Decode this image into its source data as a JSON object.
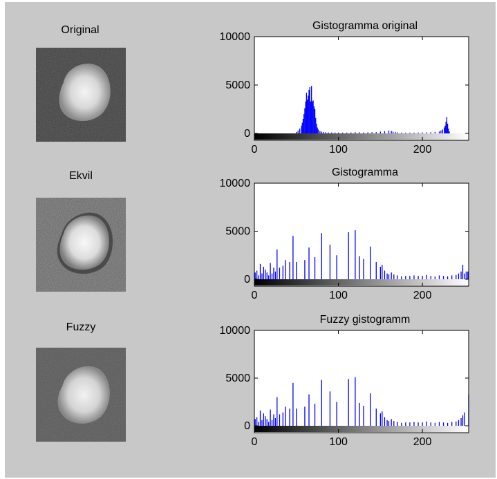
{
  "colors": {
    "figure_background": "#c8c8c8",
    "axes_background": "#ffffff",
    "bar_color": "#0000ff",
    "axes_color": "#000000"
  },
  "images": [
    {
      "label": "Original",
      "variant": "original"
    },
    {
      "label": "Ekvil",
      "variant": "equalized"
    },
    {
      "label": "Fuzzy",
      "variant": "fuzzy"
    }
  ],
  "chart_data": [
    {
      "type": "bar",
      "title": "Gistogramma original",
      "xlim": [
        0,
        255
      ],
      "ylim": [
        0,
        10000
      ],
      "xticks": [
        0,
        100,
        200
      ],
      "yticks": [
        0,
        5000,
        10000
      ],
      "colorbar": "grayscale",
      "x": [
        50,
        52,
        54,
        56,
        57,
        58,
        59,
        60,
        61,
        62,
        63,
        64,
        65,
        66,
        67,
        68,
        69,
        70,
        71,
        72,
        73,
        74,
        75,
        76,
        78,
        80,
        82,
        85,
        88,
        92,
        96,
        100,
        105,
        110,
        115,
        120,
        125,
        130,
        135,
        140,
        145,
        150,
        155,
        160,
        163,
        165,
        168,
        170,
        175,
        180,
        185,
        190,
        195,
        200,
        205,
        210,
        215,
        220,
        222,
        224,
        226,
        227,
        228,
        229,
        230,
        231,
        232
      ],
      "values": [
        150,
        300,
        500,
        800,
        1100,
        1500,
        2000,
        2600,
        3300,
        4200,
        3500,
        3900,
        4500,
        4800,
        3300,
        4900,
        3300,
        3400,
        2800,
        2500,
        1600,
        1000,
        600,
        400,
        250,
        180,
        150,
        120,
        100,
        100,
        90,
        90,
        80,
        80,
        100,
        120,
        120,
        100,
        110,
        130,
        140,
        180,
        220,
        300,
        250,
        180,
        130,
        100,
        90,
        80,
        80,
        80,
        90,
        100,
        110,
        130,
        150,
        200,
        300,
        400,
        600,
        800,
        1200,
        1700,
        1000,
        500,
        200
      ]
    },
    {
      "type": "bar",
      "title": "Gistogramma",
      "xlim": [
        0,
        255
      ],
      "ylim": [
        0,
        10000
      ],
      "xticks": [
        0,
        100,
        200
      ],
      "yticks": [
        0,
        5000,
        10000
      ],
      "colorbar": "grayscale",
      "x": [
        1,
        3,
        5,
        7,
        9,
        11,
        13,
        15,
        17,
        19,
        21,
        23,
        25,
        27,
        30,
        34,
        37,
        42,
        46,
        50,
        60,
        65,
        72,
        80,
        90,
        98,
        112,
        120,
        125,
        130,
        138,
        145,
        150,
        152,
        155,
        158,
        160,
        163,
        166,
        170,
        175,
        180,
        185,
        190,
        195,
        200,
        205,
        210,
        215,
        220,
        225,
        230,
        235,
        240,
        243,
        246,
        248,
        250,
        252,
        254
      ],
      "values": [
        700,
        900,
        400,
        1600,
        600,
        1300,
        1000,
        700,
        400,
        1700,
        600,
        1200,
        800,
        3100,
        1200,
        1400,
        2000,
        1800,
        4500,
        1800,
        2000,
        3300,
        2300,
        4800,
        3600,
        2500,
        4900,
        5100,
        2400,
        2100,
        3400,
        1800,
        1300,
        1500,
        900,
        600,
        500,
        700,
        500,
        400,
        300,
        350,
        350,
        400,
        350,
        350,
        450,
        350,
        300,
        400,
        350,
        300,
        400,
        450,
        600,
        800,
        1500,
        600,
        800,
        800
      ]
    },
    {
      "type": "bar",
      "title": "Fuzzy gistogramm",
      "xlim": [
        0,
        255
      ],
      "ylim": [
        0,
        10000
      ],
      "xticks": [
        0,
        100,
        200
      ],
      "yticks": [
        0,
        5000,
        10000
      ],
      "colorbar": "grayscale",
      "x": [
        1,
        3,
        5,
        7,
        9,
        11,
        13,
        15,
        17,
        19,
        21,
        23,
        25,
        27,
        30,
        34,
        37,
        42,
        46,
        50,
        60,
        65,
        72,
        80,
        90,
        98,
        112,
        120,
        125,
        130,
        138,
        145,
        150,
        152,
        155,
        158,
        160,
        163,
        166,
        170,
        175,
        180,
        185,
        190,
        195,
        200,
        205,
        210,
        215,
        220,
        225,
        230,
        235,
        240,
        243,
        246,
        248,
        250,
        255
      ],
      "values": [
        700,
        900,
        400,
        1600,
        600,
        1300,
        1000,
        700,
        400,
        1700,
        600,
        1200,
        800,
        3000,
        1200,
        1400,
        2000,
        1800,
        4500,
        1800,
        2000,
        3300,
        2300,
        4800,
        3600,
        2500,
        4900,
        5100,
        2400,
        2100,
        3400,
        1800,
        1300,
        1500,
        900,
        600,
        500,
        700,
        500,
        400,
        300,
        350,
        350,
        400,
        350,
        350,
        450,
        350,
        300,
        400,
        350,
        300,
        400,
        450,
        600,
        800,
        1100,
        1400,
        3300
      ]
    }
  ]
}
